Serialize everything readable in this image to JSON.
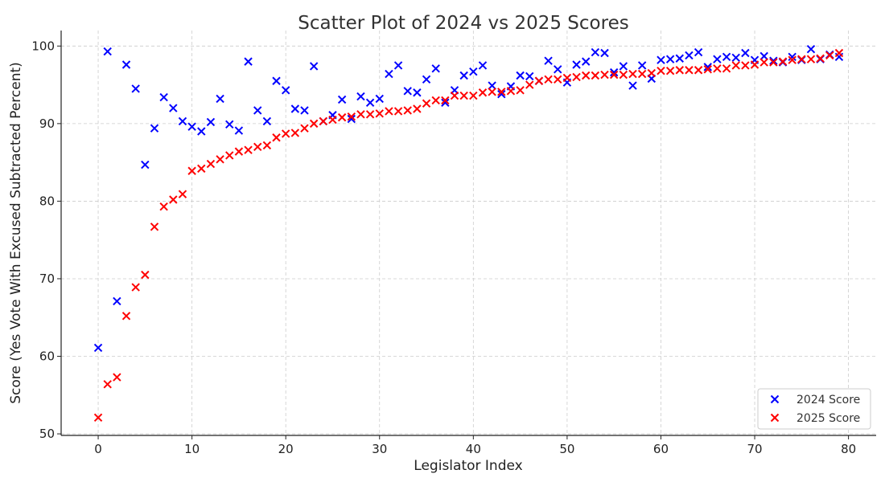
{
  "chart_data": {
    "type": "scatter",
    "title": "Scatter Plot of 2024 vs 2025 Scores",
    "xlabel": "Legislator Index",
    "ylabel": "Score (Yes Vote With Excused Subtracted Percent)",
    "xlim": [
      -3.95,
      82.95
    ],
    "ylim": [
      49.8,
      102
    ],
    "xticks": [
      0,
      10,
      20,
      30,
      40,
      50,
      60,
      70,
      80
    ],
    "yticks": [
      50,
      60,
      70,
      80,
      90,
      100
    ],
    "grid": true,
    "legend_position": "bottom-right",
    "marker": "x",
    "series": [
      {
        "name": "2024 Score",
        "color": "#0000ff",
        "x": [
          0,
          1,
          2,
          3,
          4,
          5,
          6,
          7,
          8,
          9,
          10,
          11,
          12,
          13,
          14,
          15,
          16,
          17,
          18,
          19,
          20,
          21,
          22,
          23,
          24,
          25,
          26,
          27,
          28,
          29,
          30,
          31,
          32,
          33,
          34,
          35,
          36,
          37,
          38,
          39,
          40,
          41,
          42,
          43,
          44,
          45,
          46,
          47,
          48,
          49,
          50,
          51,
          52,
          53,
          54,
          55,
          56,
          57,
          58,
          59,
          60,
          61,
          62,
          63,
          64,
          65,
          66,
          67,
          68,
          69,
          70,
          71,
          72,
          73,
          74,
          75,
          76,
          77,
          78,
          79
        ],
        "y": [
          61.1,
          99.3,
          67.1,
          97.6,
          94.5,
          84.7,
          89.4,
          93.4,
          92.0,
          90.3,
          89.6,
          89.0,
          90.2,
          93.2,
          89.9,
          89.1,
          98.0,
          91.7,
          90.3,
          95.5,
          94.3,
          91.9,
          91.7,
          97.4,
          90.3,
          91.1,
          93.1,
          90.6,
          93.5,
          92.7,
          93.2,
          96.4,
          97.5,
          94.2,
          94.0,
          95.7,
          97.1,
          92.7,
          94.3,
          96.2,
          96.7,
          97.5,
          94.9,
          93.8,
          94.8,
          96.2,
          96.1,
          95.5,
          98.1,
          97.0,
          95.3,
          97.6,
          98.0,
          99.2,
          99.1,
          96.6,
          97.4,
          94.9,
          97.5,
          95.8,
          98.2,
          98.3,
          98.4,
          98.8,
          99.2,
          97.3,
          98.3,
          98.6,
          98.5,
          99.1,
          98.2,
          98.7,
          98.1,
          97.9,
          98.6,
          98.2,
          99.6,
          98.3,
          98.9,
          98.6
        ]
      },
      {
        "name": "2025 Score",
        "color": "#ff0000",
        "x": [
          0,
          1,
          2,
          3,
          4,
          5,
          6,
          7,
          8,
          9,
          10,
          11,
          12,
          13,
          14,
          15,
          16,
          17,
          18,
          19,
          20,
          21,
          22,
          23,
          24,
          25,
          26,
          27,
          28,
          29,
          30,
          31,
          32,
          33,
          34,
          35,
          36,
          37,
          38,
          39,
          40,
          41,
          42,
          43,
          44,
          45,
          46,
          47,
          48,
          49,
          50,
          51,
          52,
          53,
          54,
          55,
          56,
          57,
          58,
          59,
          60,
          61,
          62,
          63,
          64,
          65,
          66,
          67,
          68,
          69,
          70,
          71,
          72,
          73,
          74,
          75,
          76,
          77,
          78,
          79
        ],
        "y": [
          52.1,
          56.4,
          57.3,
          65.2,
          68.9,
          70.5,
          76.7,
          79.3,
          80.2,
          80.9,
          83.9,
          84.2,
          84.8,
          85.4,
          85.9,
          86.4,
          86.6,
          87.0,
          87.2,
          88.2,
          88.7,
          88.8,
          89.4,
          90.0,
          90.3,
          90.5,
          90.8,
          90.9,
          91.2,
          91.2,
          91.3,
          91.6,
          91.6,
          91.7,
          91.9,
          92.6,
          93.0,
          93.0,
          93.6,
          93.6,
          93.6,
          94.0,
          94.1,
          94.1,
          94.2,
          94.3,
          95.0,
          95.5,
          95.7,
          95.7,
          95.9,
          96.0,
          96.2,
          96.2,
          96.3,
          96.3,
          96.3,
          96.4,
          96.4,
          96.5,
          96.8,
          96.8,
          96.9,
          96.9,
          96.9,
          97.0,
          97.1,
          97.1,
          97.5,
          97.5,
          97.6,
          97.9,
          97.9,
          98.0,
          98.2,
          98.3,
          98.3,
          98.4,
          98.8,
          99.1
        ]
      }
    ]
  }
}
